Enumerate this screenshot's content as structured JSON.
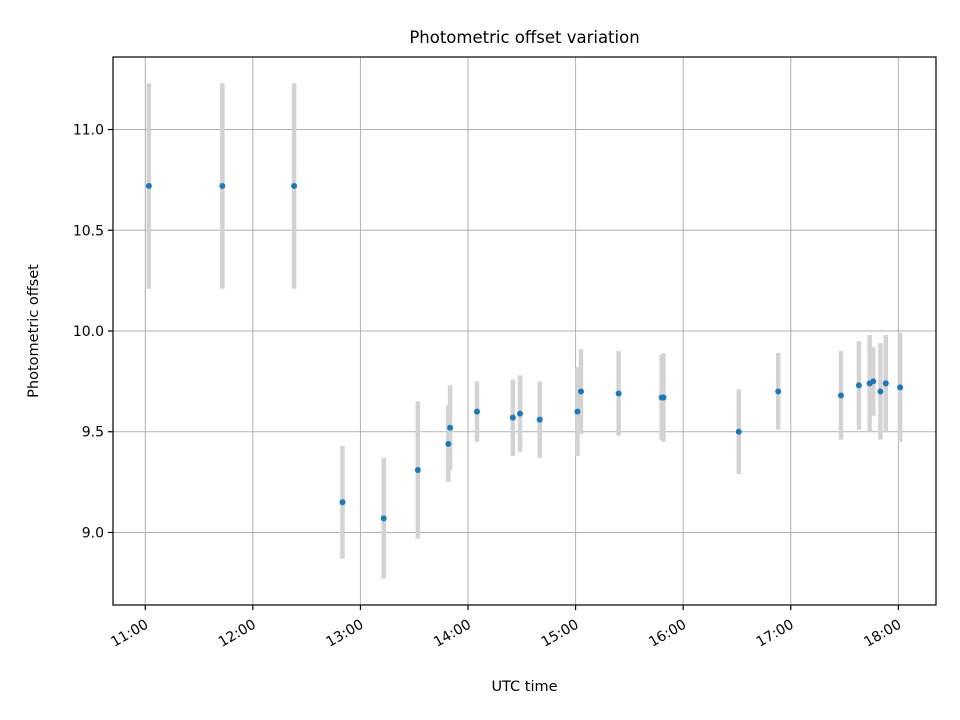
{
  "chart_data": {
    "type": "scatter",
    "title": "Photometric offset variation",
    "xlabel": "UTC time",
    "ylabel": "Photometric offset",
    "x_ticks": [
      "11:00",
      "12:00",
      "13:00",
      "14:00",
      "15:00",
      "16:00",
      "17:00",
      "18:00"
    ],
    "y_ticks": [
      "9.0",
      "9.5",
      "10.0",
      "10.5",
      "11.0"
    ],
    "xlim": [
      "10:42",
      "18:21"
    ],
    "ylim": [
      8.64,
      11.36
    ],
    "grid": true,
    "series": [
      {
        "marker_color": "#1f77b4",
        "errorbar_color": "#d3d3d3",
        "points": [
          {
            "x": "11:02",
            "y": 10.72,
            "err": 0.51
          },
          {
            "x": "11:43",
            "y": 10.72,
            "err": 0.51
          },
          {
            "x": "12:23",
            "y": 10.72,
            "err": 0.51
          },
          {
            "x": "12:50",
            "y": 9.15,
            "err": 0.28
          },
          {
            "x": "13:13",
            "y": 9.07,
            "err": 0.3
          },
          {
            "x": "13:32",
            "y": 9.31,
            "err": 0.34
          },
          {
            "x": "13:49",
            "y": 9.44,
            "err": 0.19
          },
          {
            "x": "13:50",
            "y": 9.52,
            "err": 0.21
          },
          {
            "x": "14:05",
            "y": 9.6,
            "err": 0.15
          },
          {
            "x": "14:25",
            "y": 9.57,
            "err": 0.19
          },
          {
            "x": "14:29",
            "y": 9.59,
            "err": 0.19
          },
          {
            "x": "14:40",
            "y": 9.56,
            "err": 0.19
          },
          {
            "x": "15:01",
            "y": 9.6,
            "err": 0.22
          },
          {
            "x": "15:03",
            "y": 9.7,
            "err": 0.21
          },
          {
            "x": "15:24",
            "y": 9.69,
            "err": 0.21
          },
          {
            "x": "15:48",
            "y": 9.67,
            "err": 0.21
          },
          {
            "x": "15:49",
            "y": 9.67,
            "err": 0.22
          },
          {
            "x": "16:31",
            "y": 9.5,
            "err": 0.21
          },
          {
            "x": "16:53",
            "y": 9.7,
            "err": 0.19
          },
          {
            "x": "17:28",
            "y": 9.68,
            "err": 0.22
          },
          {
            "x": "17:38",
            "y": 9.73,
            "err": 0.22
          },
          {
            "x": "17:44",
            "y": 9.74,
            "err": 0.24
          },
          {
            "x": "17:46",
            "y": 9.75,
            "err": 0.17
          },
          {
            "x": "17:50",
            "y": 9.7,
            "err": 0.24
          },
          {
            "x": "17:53",
            "y": 9.74,
            "err": 0.24
          },
          {
            "x": "18:01",
            "y": 9.72,
            "err": 0.27
          }
        ]
      }
    ]
  }
}
